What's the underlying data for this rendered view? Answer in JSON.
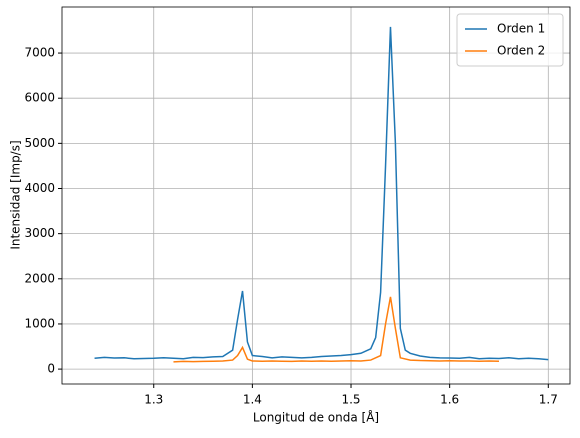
{
  "chart_data": {
    "type": "line",
    "xlabel": "Longitud de onda [Å]",
    "ylabel": "Intensidad [Imp/s]",
    "xlim": [
      1.207,
      1.722
    ],
    "ylim": [
      -330,
      8020
    ],
    "xticks": [
      1.3,
      1.4,
      1.5,
      1.6,
      1.7
    ],
    "yticks": [
      0,
      1000,
      2000,
      3000,
      4000,
      5000,
      6000,
      7000
    ],
    "grid": true,
    "legend": "upper right",
    "series": [
      {
        "name": "Orden 1",
        "color": "#1f77b4",
        "x": [
          1.24,
          1.25,
          1.26,
          1.27,
          1.28,
          1.29,
          1.3,
          1.31,
          1.32,
          1.33,
          1.34,
          1.35,
          1.36,
          1.37,
          1.38,
          1.385,
          1.39,
          1.395,
          1.4,
          1.41,
          1.42,
          1.43,
          1.44,
          1.45,
          1.46,
          1.47,
          1.48,
          1.49,
          1.5,
          1.51,
          1.52,
          1.525,
          1.53,
          1.535,
          1.54,
          1.545,
          1.55,
          1.555,
          1.56,
          1.57,
          1.58,
          1.59,
          1.6,
          1.61,
          1.62,
          1.63,
          1.64,
          1.65,
          1.66,
          1.67,
          1.68,
          1.69,
          1.7
        ],
        "values": [
          240,
          260,
          245,
          250,
          230,
          235,
          240,
          250,
          240,
          230,
          260,
          255,
          270,
          280,
          420,
          1100,
          1730,
          600,
          300,
          280,
          250,
          270,
          260,
          250,
          260,
          280,
          290,
          300,
          320,
          350,
          450,
          700,
          1700,
          4500,
          7580,
          5000,
          900,
          420,
          350,
          290,
          260,
          250,
          245,
          240,
          260,
          230,
          240,
          235,
          250,
          230,
          240,
          230,
          210
        ]
      },
      {
        "name": "Orden 2",
        "color": "#ff7f0e",
        "x": [
          1.32,
          1.33,
          1.34,
          1.35,
          1.36,
          1.37,
          1.38,
          1.385,
          1.39,
          1.395,
          1.4,
          1.41,
          1.42,
          1.43,
          1.44,
          1.45,
          1.46,
          1.47,
          1.48,
          1.49,
          1.5,
          1.51,
          1.52,
          1.53,
          1.535,
          1.54,
          1.545,
          1.55,
          1.56,
          1.57,
          1.58,
          1.59,
          1.6,
          1.61,
          1.62,
          1.63,
          1.64,
          1.65
        ],
        "values": [
          160,
          170,
          165,
          170,
          175,
          180,
          200,
          300,
          480,
          220,
          180,
          175,
          180,
          175,
          170,
          180,
          175,
          180,
          175,
          180,
          185,
          180,
          200,
          300,
          1000,
          1600,
          900,
          250,
          200,
          190,
          185,
          180,
          185,
          180,
          180,
          175,
          180,
          175
        ]
      }
    ]
  }
}
